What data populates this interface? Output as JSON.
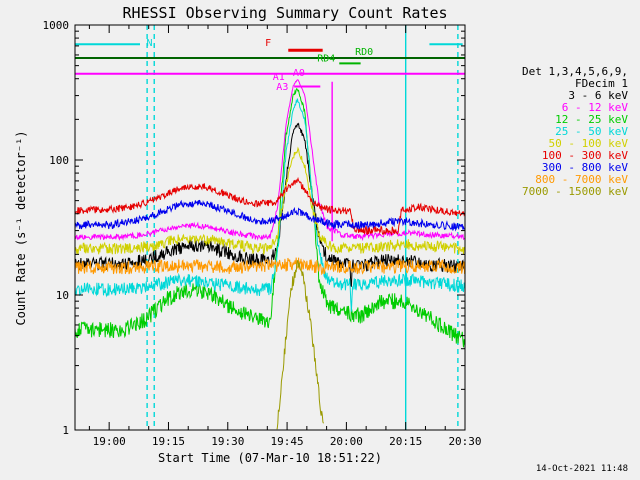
{
  "title": "RHESSI Observing Summary Count Rates",
  "timestamp": "14-Oct-2021 11:48",
  "colors": {
    "background": "#f0f0f0",
    "axis": "#000000"
  },
  "chart_data": {
    "type": "line",
    "title": "RHESSI Observing Summary Count Rates",
    "xlabel": "Start Time (07-Mar-10 18:51:22)",
    "ylabel": "Count Rate (s⁻¹ detector⁻¹)",
    "yscale": "log",
    "grid": false,
    "legend_position": "right",
    "x_unit": "decimal_hours",
    "xlim": [
      18.856,
      20.5
    ],
    "ylim": [
      1,
      1000
    ],
    "x_ticks": [
      {
        "t": 19.0,
        "label": "19:00"
      },
      {
        "t": 19.25,
        "label": "19:15"
      },
      {
        "t": 19.5,
        "label": "19:30"
      },
      {
        "t": 19.75,
        "label": "19:45"
      },
      {
        "t": 20.0,
        "label": "20:00"
      },
      {
        "t": 20.25,
        "label": "20:15"
      },
      {
        "t": 20.5,
        "label": "20:30"
      }
    ],
    "y_ticks": [
      {
        "v": 1,
        "label": "1"
      },
      {
        "v": 10,
        "label": "10"
      },
      {
        "v": 100,
        "label": "100"
      },
      {
        "v": 1000,
        "label": "1000"
      }
    ],
    "legend_header": [
      "Det 1,3,4,5,6,9,",
      "FDecim 1"
    ],
    "series": [
      {
        "name": "3 - 6 keV",
        "color": "#000000",
        "noise": 0.05,
        "points": [
          [
            18.85,
            17
          ],
          [
            19.05,
            17
          ],
          [
            19.15,
            18
          ],
          [
            19.25,
            21
          ],
          [
            19.33,
            23
          ],
          [
            19.42,
            23
          ],
          [
            19.52,
            20
          ],
          [
            19.62,
            18
          ],
          [
            19.68,
            18
          ],
          [
            19.71,
            22
          ],
          [
            19.745,
            70
          ],
          [
            19.775,
            160
          ],
          [
            19.795,
            190
          ],
          [
            19.825,
            140
          ],
          [
            19.855,
            55
          ],
          [
            19.885,
            26
          ],
          [
            19.92,
            19
          ],
          [
            19.98,
            17
          ],
          [
            20.015,
            16.5
          ],
          [
            20.02,
            10
          ],
          [
            20.025,
            16.5
          ],
          [
            20.06,
            16
          ],
          [
            20.15,
            18
          ],
          [
            20.25,
            18
          ],
          [
            20.33,
            17
          ],
          [
            20.42,
            16.5
          ],
          [
            20.51,
            16
          ]
        ]
      },
      {
        "name": "6 - 12 keV",
        "color": "#ff00ff",
        "noise": 0.022,
        "points": [
          [
            18.85,
            27
          ],
          [
            19.05,
            27
          ],
          [
            19.15,
            28
          ],
          [
            19.25,
            31
          ],
          [
            19.33,
            33
          ],
          [
            19.42,
            32
          ],
          [
            19.52,
            29
          ],
          [
            19.62,
            27
          ],
          [
            19.68,
            27
          ],
          [
            19.71,
            45
          ],
          [
            19.745,
            180
          ],
          [
            19.775,
            350
          ],
          [
            19.795,
            400
          ],
          [
            19.825,
            300
          ],
          [
            19.855,
            120
          ],
          [
            19.885,
            48
          ],
          [
            19.92,
            32
          ],
          [
            19.98,
            28
          ],
          [
            20.06,
            27
          ],
          [
            20.15,
            28
          ],
          [
            20.25,
            29
          ],
          [
            20.33,
            28
          ],
          [
            20.42,
            27.5
          ],
          [
            20.51,
            27
          ]
        ]
      },
      {
        "name": "12 - 25 keV",
        "color": "#00cc00",
        "noise": 0.06,
        "points": [
          [
            18.85,
            5.5
          ],
          [
            19.05,
            5.5
          ],
          [
            19.15,
            6.5
          ],
          [
            19.25,
            9.5
          ],
          [
            19.33,
            11
          ],
          [
            19.42,
            10.5
          ],
          [
            19.52,
            8
          ],
          [
            19.62,
            6.5
          ],
          [
            19.68,
            6.5
          ],
          [
            19.71,
            25
          ],
          [
            19.745,
            150
          ],
          [
            19.775,
            300
          ],
          [
            19.795,
            340
          ],
          [
            19.825,
            230
          ],
          [
            19.855,
            55
          ],
          [
            19.885,
            13
          ],
          [
            19.92,
            8.5
          ],
          [
            19.98,
            7.5
          ],
          [
            20.06,
            7
          ],
          [
            20.15,
            9
          ],
          [
            20.24,
            9
          ],
          [
            20.32,
            7.5
          ],
          [
            20.42,
            5.5
          ],
          [
            20.51,
            4.5
          ]
        ]
      },
      {
        "name": "25 - 50 keV",
        "color": "#00d8d8",
        "noise": 0.05,
        "points": [
          [
            18.85,
            11
          ],
          [
            19.05,
            11
          ],
          [
            19.18,
            11.5
          ],
          [
            19.28,
            13
          ],
          [
            19.4,
            12.5
          ],
          [
            19.52,
            11.5
          ],
          [
            19.62,
            11
          ],
          [
            19.68,
            11
          ],
          [
            19.71,
            20
          ],
          [
            19.745,
            110
          ],
          [
            19.775,
            240
          ],
          [
            19.795,
            280
          ],
          [
            19.825,
            200
          ],
          [
            19.855,
            55
          ],
          [
            19.885,
            20
          ],
          [
            19.92,
            13
          ],
          [
            19.98,
            12
          ],
          [
            20.015,
            12
          ],
          [
            20.02,
            7
          ],
          [
            20.025,
            12
          ],
          [
            20.06,
            12
          ],
          [
            20.15,
            12.5
          ],
          [
            20.25,
            13
          ],
          [
            20.33,
            12.5
          ],
          [
            20.42,
            12
          ],
          [
            20.51,
            11.5
          ]
        ]
      },
      {
        "name": "50 - 100 keV",
        "color": "#d0d000",
        "noise": 0.042,
        "points": [
          [
            18.85,
            22
          ],
          [
            19.05,
            22
          ],
          [
            19.18,
            23
          ],
          [
            19.28,
            26
          ],
          [
            19.4,
            26
          ],
          [
            19.52,
            24
          ],
          [
            19.62,
            22
          ],
          [
            19.68,
            22
          ],
          [
            19.71,
            28
          ],
          [
            19.745,
            65
          ],
          [
            19.775,
            105
          ],
          [
            19.795,
            120
          ],
          [
            19.825,
            90
          ],
          [
            19.855,
            45
          ],
          [
            19.885,
            28
          ],
          [
            19.92,
            23
          ],
          [
            19.98,
            22
          ],
          [
            20.06,
            22
          ],
          [
            20.15,
            23
          ],
          [
            20.25,
            24
          ],
          [
            20.33,
            23
          ],
          [
            20.42,
            22.5
          ],
          [
            20.51,
            22
          ]
        ]
      },
      {
        "name": "100 - 300 keV",
        "color": "#e60000",
        "noise": 0.035,
        "points": [
          [
            18.85,
            42
          ],
          [
            19.0,
            43
          ],
          [
            19.1,
            45
          ],
          [
            19.2,
            52
          ],
          [
            19.3,
            62
          ],
          [
            19.4,
            64
          ],
          [
            19.5,
            55
          ],
          [
            19.6,
            47
          ],
          [
            19.68,
            48
          ],
          [
            19.71,
            50
          ],
          [
            19.745,
            60
          ],
          [
            19.775,
            68
          ],
          [
            19.795,
            70
          ],
          [
            19.825,
            60
          ],
          [
            19.855,
            50
          ],
          [
            19.885,
            45
          ],
          [
            19.92,
            43
          ],
          [
            20.0,
            42
          ],
          [
            20.02,
            42
          ],
          [
            20.03,
            31
          ],
          [
            20.12,
            30
          ],
          [
            20.22,
            30
          ],
          [
            20.23,
            42
          ],
          [
            20.3,
            45
          ],
          [
            20.4,
            42
          ],
          [
            20.51,
            40
          ]
        ]
      },
      {
        "name": "300 - 800 keV",
        "color": "#0000ee",
        "noise": 0.035,
        "points": [
          [
            18.85,
            33
          ],
          [
            19.0,
            33
          ],
          [
            19.1,
            35
          ],
          [
            19.2,
            40
          ],
          [
            19.3,
            47
          ],
          [
            19.4,
            48
          ],
          [
            19.5,
            42
          ],
          [
            19.6,
            36
          ],
          [
            19.68,
            35
          ],
          [
            19.745,
            39
          ],
          [
            19.795,
            42
          ],
          [
            19.855,
            37
          ],
          [
            19.92,
            34
          ],
          [
            20.0,
            33
          ],
          [
            20.1,
            33
          ],
          [
            20.2,
            35
          ],
          [
            20.3,
            34
          ],
          [
            20.4,
            33
          ],
          [
            20.51,
            31
          ]
        ]
      },
      {
        "name": "800 - 7000 keV",
        "color": "#ff9900",
        "noise": 0.05,
        "points": [
          [
            18.85,
            16
          ],
          [
            19.1,
            16
          ],
          [
            19.3,
            16.5
          ],
          [
            19.5,
            16
          ],
          [
            19.7,
            16.5
          ],
          [
            19.795,
            17
          ],
          [
            19.9,
            16
          ],
          [
            20.1,
            16
          ],
          [
            20.3,
            16.5
          ],
          [
            20.51,
            16
          ]
        ]
      },
      {
        "name": "7000 - 15000 keV",
        "color": "#9a9a00",
        "noise": 0.05,
        "points": [
          [
            19.705,
            1.0
          ],
          [
            19.73,
            2.5
          ],
          [
            19.75,
            6
          ],
          [
            19.77,
            12
          ],
          [
            19.795,
            17
          ],
          [
            19.82,
            13
          ],
          [
            19.845,
            7
          ],
          [
            19.87,
            3
          ],
          [
            19.89,
            1.5
          ],
          [
            19.905,
            1.0
          ]
        ]
      }
    ],
    "flags": {
      "hlines": [
        {
          "t1": 18.85,
          "t2": 19.13,
          "v": 720,
          "color": "#00d8d8",
          "w": 2
        },
        {
          "t1": 20.35,
          "t2": 20.49,
          "v": 720,
          "color": "#00d8d8",
          "w": 2
        },
        {
          "t1": 18.85,
          "t2": 20.51,
          "v": 570,
          "color": "#006400",
          "w": 2
        },
        {
          "t1": 19.97,
          "t2": 20.06,
          "v": 520,
          "color": "#00b400",
          "w": 2
        },
        {
          "t1": 18.85,
          "t2": 20.51,
          "v": 435,
          "color": "#ff00ff",
          "w": 2
        },
        {
          "t1": 19.755,
          "t2": 19.9,
          "v": 650,
          "color": "#e60000",
          "w": 3
        },
        {
          "t1": 19.78,
          "t2": 19.89,
          "v": 350,
          "color": "#ff00ff",
          "w": 2
        }
      ],
      "vlines": [
        {
          "t": 19.16,
          "style": "dashed",
          "color": "#00d8d8"
        },
        {
          "t": 19.19,
          "style": "dashed",
          "color": "#00d8d8"
        },
        {
          "t": 20.47,
          "style": "dashed",
          "color": "#00d8d8"
        },
        {
          "t": 20.25,
          "style": "solid",
          "color": "#00d8d8"
        },
        {
          "t": 19.94,
          "style": "solid",
          "color": "#ff00ff",
          "v1": 25,
          "v2": 380
        }
      ],
      "labels": [
        {
          "t": 19.17,
          "v": 700,
          "text": "N",
          "color": "#00d8d8"
        },
        {
          "t": 19.67,
          "v": 700,
          "text": "F",
          "color": "#e60000"
        },
        {
          "t": 19.915,
          "v": 535,
          "text": "RD4",
          "color": "#00b400"
        },
        {
          "t": 20.075,
          "v": 600,
          "text": "RD0",
          "color": "#00b400"
        },
        {
          "t": 19.715,
          "v": 390,
          "text": "A1",
          "color": "#ff00ff"
        },
        {
          "t": 19.73,
          "v": 330,
          "text": "A3",
          "color": "#ff00ff"
        },
        {
          "t": 19.8,
          "v": 420,
          "text": "A0",
          "color": "#ff00ff"
        }
      ]
    }
  }
}
